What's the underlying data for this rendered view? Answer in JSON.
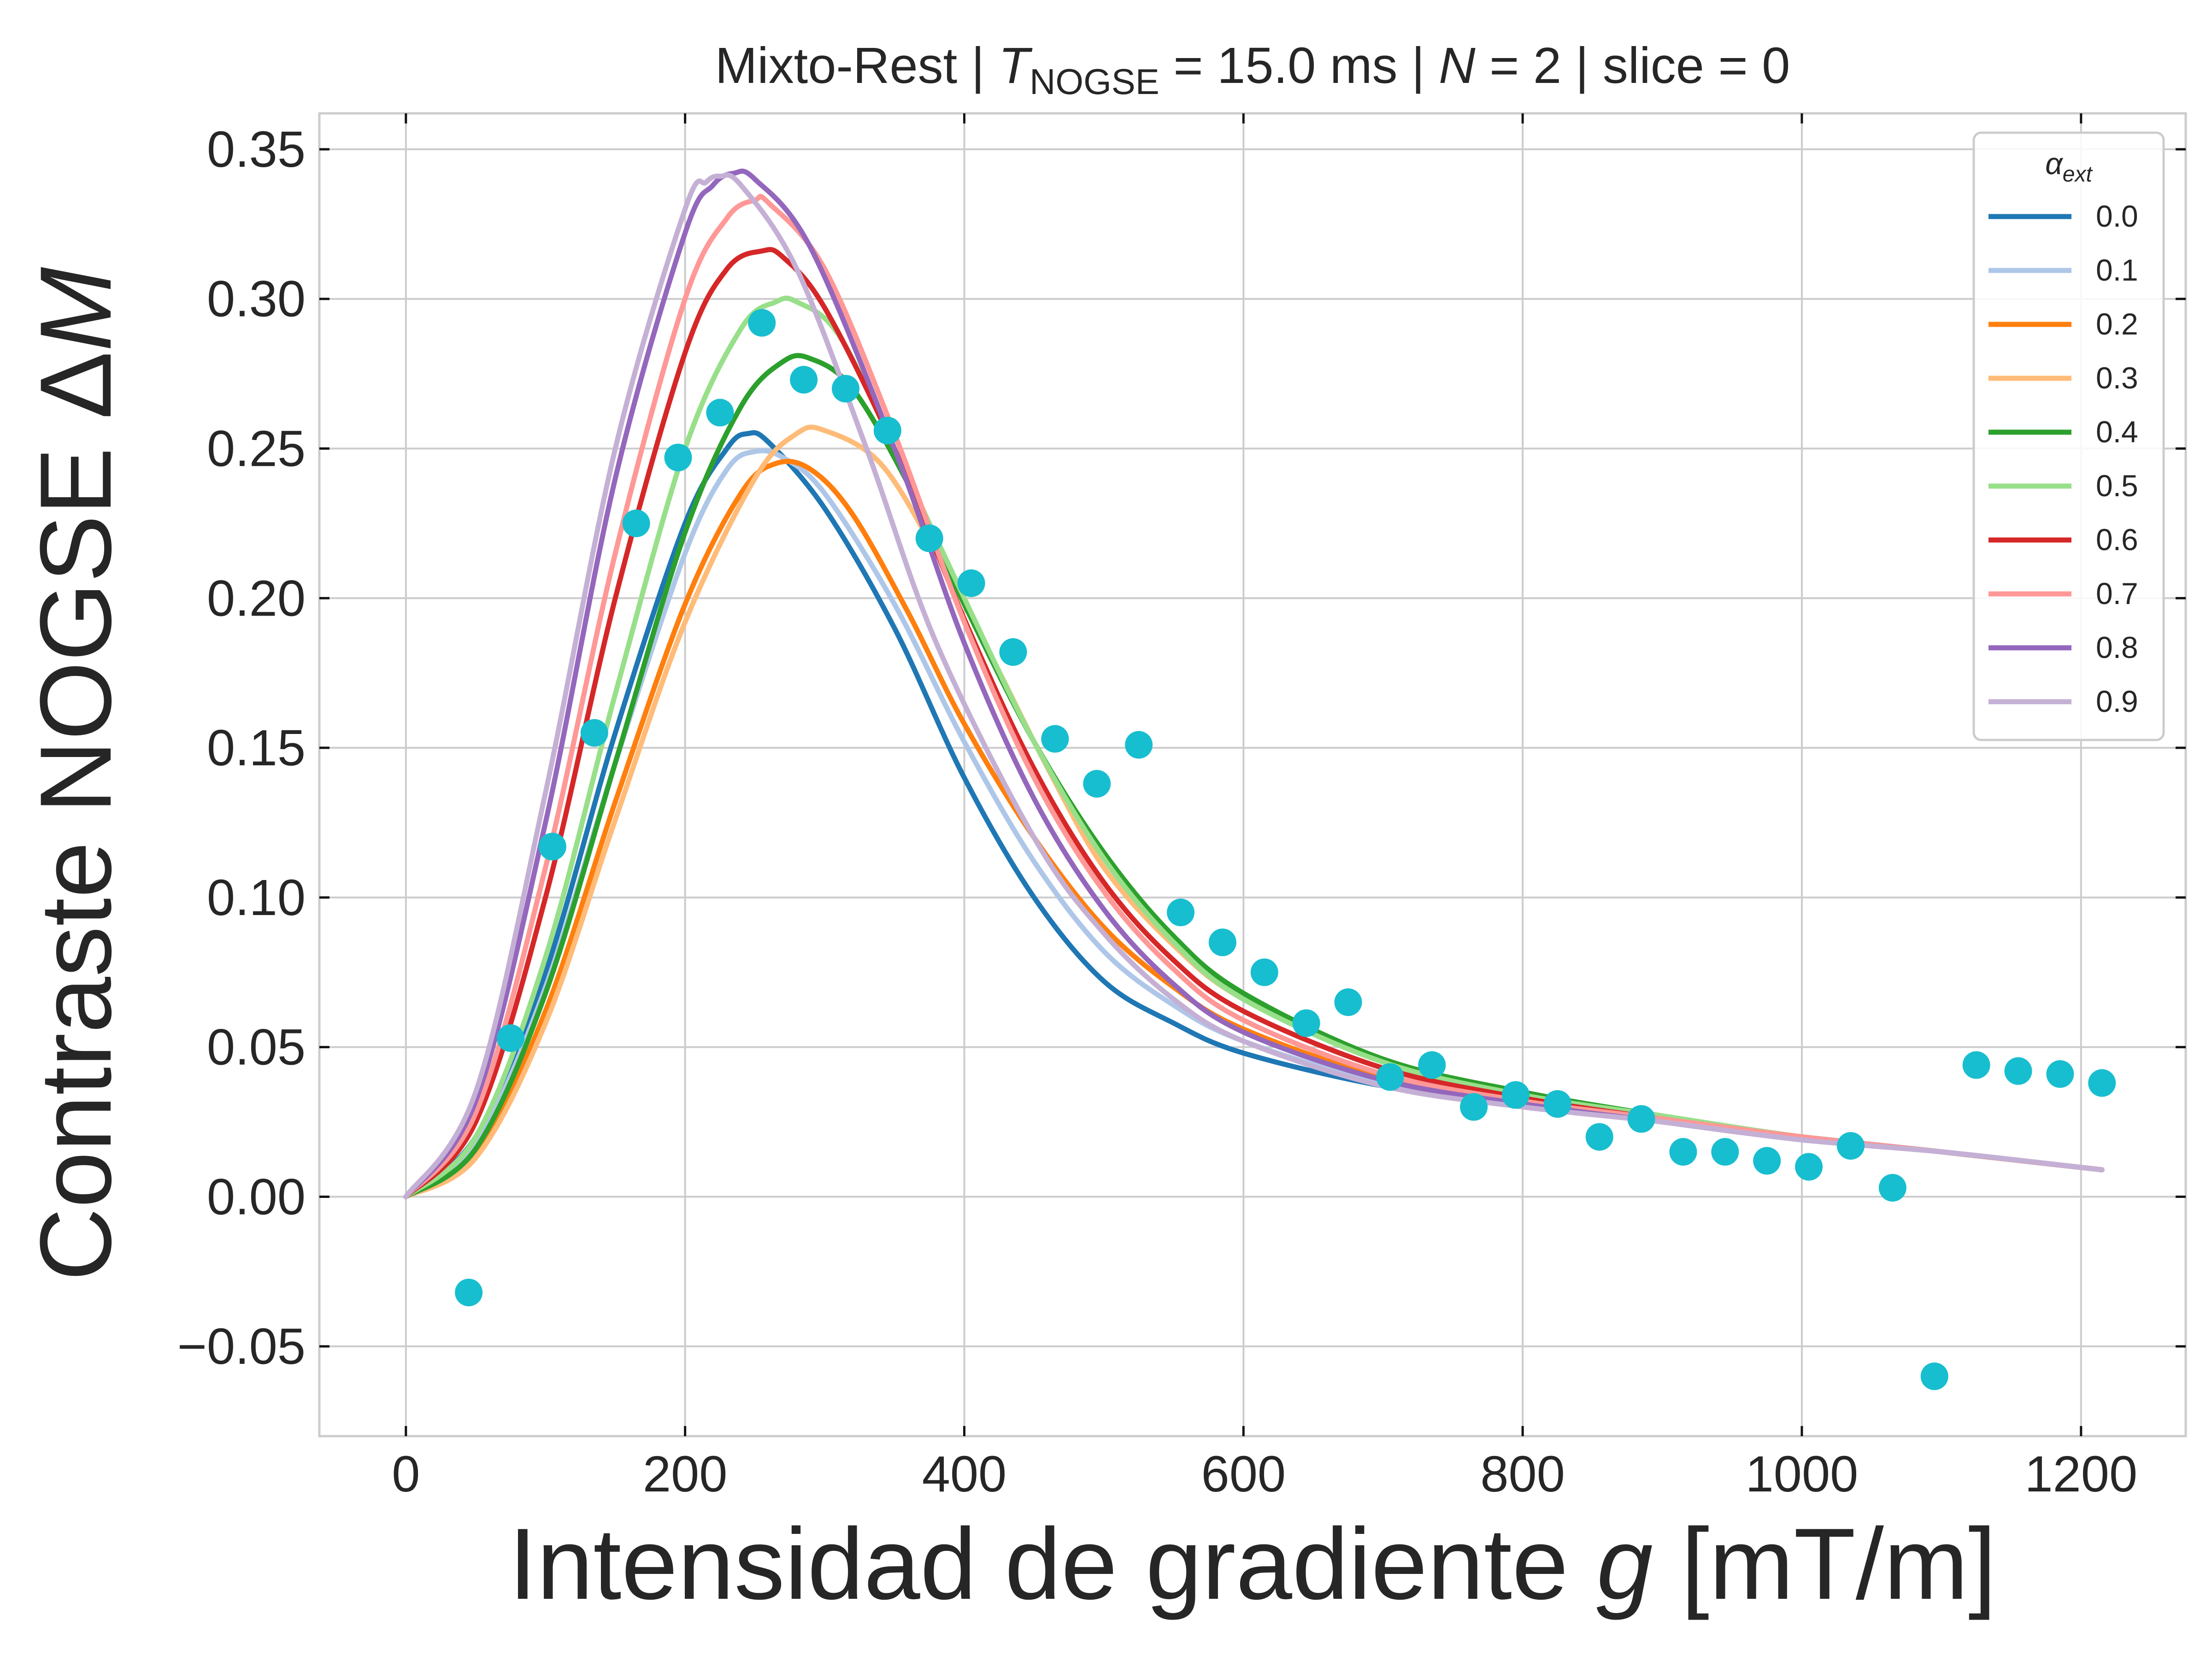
{
  "chart_data": {
    "type": "line",
    "title": "Mixto-Rest | T_NOGSE = 15.0 ms | N = 2 | slice = 0",
    "title_parts": {
      "prefix": "Mixto-Rest | ",
      "t_symbol": "T",
      "t_subscript": "NOGSE",
      "t_value": " = 15.0 ms | ",
      "n_symbol": "N",
      "n_value": " = 2 | slice = 0"
    },
    "xlabel": "Intensidad de gradiente g [mT/m]",
    "xlabel_parts": {
      "prefix": "Intensidad de gradiente ",
      "symbol": "g",
      "suffix": " [mT/m]"
    },
    "ylabel": "Contraste NOGSE ΔM",
    "ylabel_parts": {
      "prefix": "Contraste NOGSE Δ",
      "symbol": "M"
    },
    "xlim": [
      -62,
      1275
    ],
    "ylim": [
      -0.08,
      0.362
    ],
    "xticks": [
      0,
      200,
      400,
      600,
      800,
      1000,
      1200
    ],
    "xtick_labels": [
      "0",
      "200",
      "400",
      "600",
      "800",
      "1000",
      "1200"
    ],
    "yticks": [
      -0.05,
      0.0,
      0.05,
      0.1,
      0.15,
      0.2,
      0.25,
      0.3,
      0.35
    ],
    "ytick_labels": [
      "−0.05",
      "0.00",
      "0.05",
      "0.10",
      "0.15",
      "0.20",
      "0.25",
      "0.30",
      "0.35"
    ],
    "grid": true,
    "legend": {
      "title": "α_ext",
      "title_symbol": "α",
      "title_subscript": "ext",
      "placement": "top-right"
    },
    "series": [
      {
        "name": "0.0",
        "color": "#1f77b4",
        "x": [
          0,
          50,
          100,
          150,
          200,
          230,
          245,
          260,
          300,
          350,
          400,
          450,
          500,
          550,
          600,
          700,
          800,
          900,
          1000,
          1100,
          1215
        ],
        "y": [
          0.0,
          0.02,
          0.075,
          0.155,
          0.225,
          0.25,
          0.255,
          0.252,
          0.23,
          0.19,
          0.14,
          0.1,
          0.072,
          0.058,
          0.048,
          0.037,
          0.031,
          0.025,
          0.02,
          0.015,
          0.009
        ]
      },
      {
        "name": "0.1",
        "color": "#aec7e8",
        "x": [
          0,
          50,
          100,
          150,
          200,
          230,
          250,
          270,
          300,
          350,
          400,
          450,
          500,
          550,
          600,
          700,
          800,
          900,
          1000,
          1100,
          1215
        ],
        "y": [
          0.0,
          0.018,
          0.07,
          0.145,
          0.215,
          0.243,
          0.249,
          0.247,
          0.235,
          0.198,
          0.152,
          0.112,
          0.082,
          0.064,
          0.052,
          0.038,
          0.031,
          0.025,
          0.02,
          0.015,
          0.009
        ]
      },
      {
        "name": "0.2",
        "color": "#ff7f0e",
        "x": [
          0,
          50,
          100,
          150,
          200,
          240,
          265,
          290,
          320,
          360,
          400,
          450,
          500,
          550,
          600,
          700,
          800,
          900,
          1000,
          1100,
          1215
        ],
        "y": [
          0.0,
          0.015,
          0.062,
          0.132,
          0.198,
          0.235,
          0.245,
          0.243,
          0.228,
          0.195,
          0.158,
          0.12,
          0.09,
          0.07,
          0.056,
          0.04,
          0.032,
          0.026,
          0.02,
          0.015,
          0.009
        ]
      },
      {
        "name": "0.3",
        "color": "#ffbb78",
        "x": [
          0,
          50,
          100,
          150,
          200,
          250,
          280,
          300,
          340,
          380,
          420,
          460,
          500,
          550,
          600,
          700,
          800,
          900,
          1000,
          1100,
          1215
        ],
        "y": [
          0.0,
          0.013,
          0.058,
          0.126,
          0.192,
          0.24,
          0.255,
          0.256,
          0.245,
          0.215,
          0.18,
          0.143,
          0.11,
          0.084,
          0.066,
          0.045,
          0.034,
          0.027,
          0.02,
          0.015,
          0.009
        ]
      },
      {
        "name": "0.4",
        "color": "#2ca02c",
        "x": [
          0,
          50,
          100,
          150,
          200,
          240,
          270,
          290,
          320,
          360,
          400,
          450,
          500,
          550,
          600,
          700,
          800,
          900,
          1000,
          1100,
          1215
        ],
        "y": [
          0.0,
          0.016,
          0.068,
          0.145,
          0.222,
          0.264,
          0.279,
          0.28,
          0.27,
          0.238,
          0.198,
          0.152,
          0.115,
          0.087,
          0.068,
          0.046,
          0.035,
          0.027,
          0.02,
          0.015,
          0.009
        ]
      },
      {
        "name": "0.5",
        "color": "#98df8a",
        "x": [
          0,
          50,
          100,
          150,
          200,
          240,
          265,
          280,
          310,
          350,
          400,
          450,
          500,
          550,
          600,
          700,
          800,
          900,
          1000,
          1100,
          1215
        ],
        "y": [
          0.0,
          0.02,
          0.08,
          0.168,
          0.25,
          0.29,
          0.299,
          0.299,
          0.288,
          0.25,
          0.2,
          0.152,
          0.113,
          0.085,
          0.066,
          0.045,
          0.034,
          0.027,
          0.02,
          0.015,
          0.009
        ]
      },
      {
        "name": "0.6",
        "color": "#d62728",
        "x": [
          0,
          50,
          100,
          150,
          200,
          230,
          255,
          270,
          300,
          350,
          400,
          450,
          500,
          550,
          600,
          700,
          800,
          900,
          1000,
          1100,
          1215
        ],
        "y": [
          0.0,
          0.025,
          0.1,
          0.2,
          0.282,
          0.31,
          0.316,
          0.314,
          0.297,
          0.25,
          0.193,
          0.143,
          0.105,
          0.079,
          0.062,
          0.043,
          0.033,
          0.026,
          0.02,
          0.015,
          0.009
        ]
      },
      {
        "name": "0.7",
        "color": "#ff9896",
        "x": [
          0,
          50,
          100,
          150,
          200,
          230,
          250,
          260,
          300,
          350,
          400,
          450,
          500,
          550,
          600,
          700,
          800,
          900,
          1000,
          1100,
          1215
        ],
        "y": [
          0.0,
          0.028,
          0.11,
          0.215,
          0.3,
          0.327,
          0.333,
          0.332,
          0.31,
          0.255,
          0.192,
          0.14,
          0.102,
          0.076,
          0.059,
          0.041,
          0.032,
          0.026,
          0.02,
          0.015,
          0.009
        ]
      },
      {
        "name": "0.8",
        "color": "#9467bd",
        "x": [
          0,
          50,
          100,
          150,
          200,
          220,
          235,
          250,
          290,
          350,
          400,
          450,
          500,
          550,
          600,
          700,
          800,
          900,
          1000,
          1100,
          1215
        ],
        "y": [
          0.0,
          0.032,
          0.125,
          0.24,
          0.322,
          0.338,
          0.342,
          0.34,
          0.317,
          0.25,
          0.185,
          0.133,
          0.096,
          0.071,
          0.055,
          0.039,
          0.031,
          0.025,
          0.019,
          0.015,
          0.009
        ]
      },
      {
        "name": "0.9",
        "color": "#c5b0d5",
        "x": [
          0,
          50,
          100,
          150,
          200,
          215,
          225,
          240,
          280,
          330,
          380,
          450,
          500,
          550,
          600,
          700,
          800,
          900,
          1000,
          1100,
          1215
        ],
        "y": [
          0.0,
          0.035,
          0.135,
          0.25,
          0.33,
          0.339,
          0.341,
          0.338,
          0.31,
          0.25,
          0.185,
          0.12,
          0.088,
          0.066,
          0.052,
          0.037,
          0.03,
          0.025,
          0.019,
          0.015,
          0.009
        ]
      }
    ],
    "scatter": {
      "color": "#17becf",
      "x": [
        45,
        75,
        105,
        135,
        165,
        195,
        225,
        255,
        285,
        315,
        345,
        375,
        405,
        435,
        465,
        495,
        525,
        555,
        585,
        615,
        645,
        675,
        705,
        735,
        765,
        795,
        825,
        855,
        885,
        915,
        945,
        975,
        1005,
        1035,
        1065,
        1095,
        1125,
        1155,
        1185,
        1215
      ],
      "y": [
        -0.032,
        0.053,
        0.117,
        0.155,
        0.225,
        0.247,
        0.262,
        0.292,
        0.273,
        0.27,
        0.256,
        0.22,
        0.205,
        0.182,
        0.153,
        0.138,
        0.151,
        0.095,
        0.085,
        0.075,
        0.058,
        0.065,
        0.04,
        0.044,
        0.03,
        0.034,
        0.031,
        0.02,
        0.026,
        0.015,
        0.015,
        0.012,
        0.01,
        0.017,
        0.003,
        -0.06,
        0.044,
        0.042,
        0.041,
        0.038
      ]
    }
  }
}
